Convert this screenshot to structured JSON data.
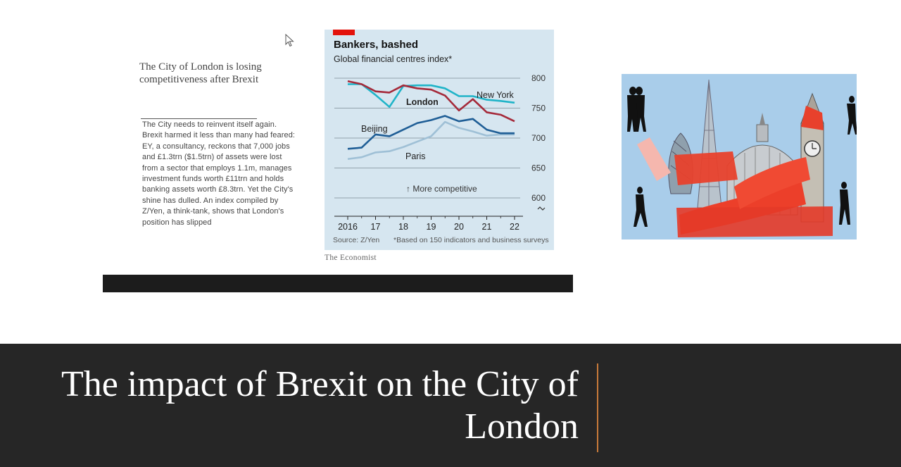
{
  "slide": {
    "article_headline": "The City of London is losing competitiveness after Brexit",
    "article_body": "The City needs to reinvent itself again. Brexit harmed it less than many had feared: EY, a consultancy, reckons that 7,000 jobs and £1.3trn ($1.5trn) of assets were lost from a sector that employs 1.1m, manages investment funds worth £11trn and holds banking assets worth £8.3trn. Yet the City's shine has dulled. An index compiled by Z/Yen, a think-tank, shows that London's position has slipped",
    "publisher": "The Economist",
    "main_title": "The impact of Brexit on the City of London"
  },
  "chart": {
    "title": "Bankers, bashed",
    "subtitle": "Global financial centres index*",
    "annotation": "↑ More competitive",
    "source": "Source: Z/Yen",
    "footnote": "*Based on 150 indicators and business surveys"
  },
  "colors": {
    "accent_red": "#e3120b",
    "chart_bg": "#d6e6f0",
    "london": "#a52a3a",
    "new_york": "#20b4c8",
    "beijing": "#1f5e96",
    "paris": "#9fc0d6",
    "bottom_band": "#262626",
    "title_accent_line": "#c87a3a"
  },
  "icons": [
    "mouse-pointer-icon",
    "axis-break-icon"
  ],
  "chart_data": {
    "type": "line",
    "title": "Bankers, bashed",
    "subtitle": "Global financial centres index*",
    "x": [
      2016,
      2016.5,
      2017,
      2017.5,
      2018,
      2018.5,
      2019,
      2019.5,
      2020,
      2020.5,
      2021,
      2021.5,
      2022
    ],
    "x_ticks": [
      2016,
      2017,
      2018,
      2019,
      2020,
      2021,
      2022
    ],
    "x_tick_labels": [
      "2016",
      "17",
      "18",
      "19",
      "20",
      "21",
      "22"
    ],
    "y_ticks": [
      600,
      650,
      700,
      750,
      800
    ],
    "ylim": [
      600,
      800
    ],
    "series": [
      {
        "name": "London",
        "values": [
          795,
          790,
          778,
          776,
          788,
          783,
          781,
          771,
          746,
          765,
          743,
          739,
          728
        ]
      },
      {
        "name": "New York",
        "values": [
          790,
          790,
          772,
          752,
          787,
          788,
          788,
          783,
          770,
          770,
          764,
          762,
          759
        ]
      },
      {
        "name": "Beijing",
        "values": [
          682,
          684,
          706,
          703,
          714,
          725,
          730,
          737,
          728,
          732,
          714,
          708,
          708
        ]
      },
      {
        "name": "Paris",
        "values": [
          665,
          668,
          676,
          678,
          685,
          694,
          703,
          727,
          717,
          711,
          704,
          706,
          706
        ]
      }
    ]
  }
}
